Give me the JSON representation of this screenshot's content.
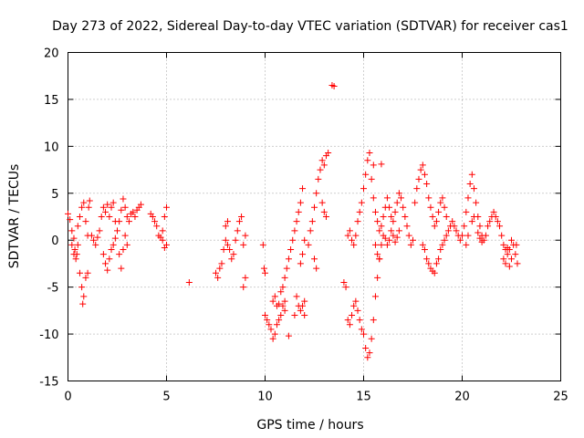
{
  "chart_data": {
    "type": "scatter",
    "title": "Day 273 of 2022, Sidereal Day-to-day VTEC variation (SDTVAR) for receiver cas1",
    "xlabel": "GPS time / hours",
    "ylabel": "SDTVAR / TECUs",
    "xlim": [
      0,
      25
    ],
    "ylim": [
      -15,
      20
    ],
    "xticks": [
      0,
      5,
      10,
      15,
      20,
      25
    ],
    "yticks": [
      -15,
      -10,
      -5,
      0,
      5,
      10,
      15,
      20
    ],
    "x_tick_labels": [
      "0",
      "5",
      "10",
      "15",
      "20",
      "25"
    ],
    "y_tick_labels": [
      "-15",
      "-10",
      "-5",
      "0",
      "5",
      "10",
      "15",
      "20"
    ],
    "grid": true,
    "marker": "+",
    "color": "#ff0000",
    "series": [
      {
        "name": "cas1",
        "points": [
          [
            0.0,
            2.8
          ],
          [
            0.1,
            2.2
          ],
          [
            0.2,
            1.0
          ],
          [
            0.3,
            0.2
          ],
          [
            0.35,
            -1.0
          ],
          [
            0.4,
            -2.0
          ],
          [
            0.45,
            -1.5
          ],
          [
            0.5,
            1.5
          ],
          [
            0.6,
            2.5
          ],
          [
            0.7,
            3.5
          ],
          [
            0.8,
            4.0
          ],
          [
            0.9,
            2.0
          ],
          [
            1.0,
            0.5
          ],
          [
            1.05,
            3.5
          ],
          [
            1.1,
            4.2
          ],
          [
            0.5,
            -0.5
          ],
          [
            0.6,
            -3.5
          ],
          [
            0.7,
            -5.0
          ],
          [
            0.75,
            -6.8
          ],
          [
            0.8,
            -6.0
          ],
          [
            0.9,
            -4.0
          ],
          [
            1.0,
            -3.5
          ],
          [
            0.2,
            -0.5
          ],
          [
            0.3,
            -1.5
          ],
          [
            1.2,
            0.5
          ],
          [
            1.3,
            0.0
          ],
          [
            1.4,
            -0.5
          ],
          [
            1.5,
            0.3
          ],
          [
            1.6,
            1.0
          ],
          [
            1.7,
            2.5
          ],
          [
            1.8,
            3.5
          ],
          [
            1.9,
            3.0
          ],
          [
            2.0,
            3.8
          ],
          [
            2.1,
            2.5
          ],
          [
            2.2,
            3.5
          ],
          [
            2.3,
            4.0
          ],
          [
            2.4,
            2.0
          ],
          [
            2.5,
            1.0
          ],
          [
            1.8,
            -1.5
          ],
          [
            1.9,
            -2.5
          ],
          [
            2.0,
            -3.2
          ],
          [
            2.1,
            -2.0
          ],
          [
            2.2,
            -1.0
          ],
          [
            2.3,
            -0.5
          ],
          [
            2.4,
            0.2
          ],
          [
            2.6,
            -1.5
          ],
          [
            2.7,
            -3.0
          ],
          [
            2.8,
            -1.0
          ],
          [
            2.9,
            0.5
          ],
          [
            3.0,
            -0.5
          ],
          [
            2.6,
            2.0
          ],
          [
            2.7,
            3.2
          ],
          [
            2.8,
            4.4
          ],
          [
            2.9,
            3.5
          ],
          [
            3.0,
            2.5
          ],
          [
            3.1,
            2.0
          ],
          [
            3.2,
            2.8
          ],
          [
            3.3,
            3.0
          ],
          [
            3.4,
            2.5
          ],
          [
            3.5,
            3.2
          ],
          [
            3.6,
            3.5
          ],
          [
            3.7,
            3.8
          ],
          [
            4.2,
            2.8
          ],
          [
            4.3,
            2.5
          ],
          [
            4.4,
            2.0
          ],
          [
            4.5,
            1.5
          ],
          [
            4.6,
            0.5
          ],
          [
            4.7,
            0.3
          ],
          [
            4.8,
            1.0
          ],
          [
            4.9,
            2.5
          ],
          [
            5.0,
            3.5
          ],
          [
            5.0,
            -0.5
          ],
          [
            4.9,
            -0.8
          ],
          [
            4.8,
            0.0
          ],
          [
            6.15,
            -4.5
          ],
          [
            7.5,
            -3.5
          ],
          [
            7.6,
            -4.0
          ],
          [
            7.7,
            -3.0
          ],
          [
            7.8,
            -2.5
          ],
          [
            7.9,
            -1.0
          ],
          [
            8.0,
            0.0
          ],
          [
            8.1,
            -0.5
          ],
          [
            8.2,
            -1.0
          ],
          [
            8.3,
            -2.0
          ],
          [
            8.4,
            -1.5
          ],
          [
            8.5,
            0.0
          ],
          [
            8.6,
            1.0
          ],
          [
            8.7,
            2.0
          ],
          [
            8.8,
            2.5
          ],
          [
            8.9,
            -0.5
          ],
          [
            9.0,
            0.5
          ],
          [
            9.0,
            -4.0
          ],
          [
            8.9,
            -5.0
          ],
          [
            8.0,
            1.5
          ],
          [
            8.1,
            2.0
          ],
          [
            9.9,
            -0.5
          ],
          [
            9.95,
            -3.0
          ],
          [
            10.0,
            -3.5
          ],
          [
            10.0,
            -8.0
          ],
          [
            10.1,
            -8.5
          ],
          [
            10.2,
            -9.0
          ],
          [
            10.3,
            -9.5
          ],
          [
            10.4,
            -10.5
          ],
          [
            10.5,
            -10.0
          ],
          [
            10.6,
            -9.0
          ],
          [
            10.7,
            -8.5
          ],
          [
            10.8,
            -8.0
          ],
          [
            10.9,
            -7.0
          ],
          [
            11.0,
            -6.5
          ],
          [
            10.4,
            -6.5
          ],
          [
            10.5,
            -6.0
          ],
          [
            10.6,
            -7.0
          ],
          [
            10.7,
            -6.8
          ],
          [
            10.8,
            -5.5
          ],
          [
            10.9,
            -5.0
          ],
          [
            11.0,
            -4.0
          ],
          [
            11.1,
            -3.0
          ],
          [
            11.2,
            -2.0
          ],
          [
            11.3,
            -1.0
          ],
          [
            11.4,
            0.0
          ],
          [
            11.5,
            1.0
          ],
          [
            11.6,
            2.0
          ],
          [
            11.7,
            3.0
          ],
          [
            11.8,
            4.0
          ],
          [
            11.9,
            5.5
          ],
          [
            11.0,
            -7.5
          ],
          [
            11.2,
            -10.2
          ],
          [
            11.5,
            -8.0
          ],
          [
            11.6,
            -6.0
          ],
          [
            11.7,
            -7.0
          ],
          [
            11.8,
            -7.5
          ],
          [
            11.9,
            -7.0
          ],
          [
            12.0,
            -6.5
          ],
          [
            12.0,
            -8.0
          ],
          [
            11.8,
            -2.5
          ],
          [
            11.9,
            -1.5
          ],
          [
            12.0,
            0.0
          ],
          [
            12.2,
            -0.5
          ],
          [
            12.3,
            1.0
          ],
          [
            12.4,
            2.0
          ],
          [
            12.5,
            3.5
          ],
          [
            12.6,
            5.0
          ],
          [
            12.7,
            6.5
          ],
          [
            12.8,
            7.5
          ],
          [
            12.9,
            8.5
          ],
          [
            13.0,
            8.0
          ],
          [
            13.1,
            9.0
          ],
          [
            13.2,
            9.3
          ],
          [
            12.9,
            4.0
          ],
          [
            13.0,
            3.0
          ],
          [
            13.1,
            2.5
          ],
          [
            12.5,
            -2.0
          ],
          [
            12.6,
            -3.0
          ],
          [
            13.4,
            16.5
          ],
          [
            13.5,
            16.4
          ],
          [
            14.0,
            -4.5
          ],
          [
            14.1,
            -5.0
          ],
          [
            14.2,
            -8.5
          ],
          [
            14.3,
            -9.0
          ],
          [
            14.4,
            -8.0
          ],
          [
            14.5,
            -7.0
          ],
          [
            14.6,
            -6.5
          ],
          [
            14.7,
            -7.5
          ],
          [
            14.8,
            -8.5
          ],
          [
            14.9,
            -9.5
          ],
          [
            15.0,
            -10.0
          ],
          [
            15.1,
            -11.5
          ],
          [
            15.2,
            -12.5
          ],
          [
            15.3,
            -12.0
          ],
          [
            15.4,
            -10.5
          ],
          [
            15.5,
            -8.5
          ],
          [
            15.6,
            -6.0
          ],
          [
            15.7,
            -4.0
          ],
          [
            15.8,
            -2.0
          ],
          [
            14.2,
            0.5
          ],
          [
            14.3,
            1.0
          ],
          [
            14.4,
            0.0
          ],
          [
            14.5,
            -0.5
          ],
          [
            14.6,
            0.5
          ],
          [
            14.7,
            2.0
          ],
          [
            14.8,
            3.0
          ],
          [
            14.9,
            4.0
          ],
          [
            15.0,
            5.5
          ],
          [
            15.1,
            7.0
          ],
          [
            15.2,
            8.5
          ],
          [
            15.3,
            9.3
          ],
          [
            15.4,
            6.5
          ],
          [
            15.5,
            4.5
          ],
          [
            15.6,
            3.0
          ],
          [
            15.7,
            2.0
          ],
          [
            15.8,
            1.0
          ],
          [
            15.9,
            1.5
          ],
          [
            16.0,
            2.5
          ],
          [
            16.1,
            3.5
          ],
          [
            16.2,
            4.5
          ],
          [
            16.3,
            3.5
          ],
          [
            16.4,
            2.5
          ],
          [
            16.5,
            2.0
          ],
          [
            16.6,
            3.0
          ],
          [
            16.7,
            4.0
          ],
          [
            16.8,
            5.0
          ],
          [
            16.9,
            4.5
          ],
          [
            17.0,
            3.5
          ],
          [
            17.1,
            2.5
          ],
          [
            17.2,
            1.5
          ],
          [
            17.3,
            0.5
          ],
          [
            17.4,
            -0.5
          ],
          [
            17.5,
            0.0
          ],
          [
            15.6,
            -0.5
          ],
          [
            15.7,
            -1.5
          ],
          [
            15.8,
            -2.0
          ],
          [
            15.9,
            -0.5
          ],
          [
            16.0,
            0.5
          ],
          [
            16.1,
            0.2
          ],
          [
            16.2,
            -0.5
          ],
          [
            16.3,
            0.0
          ],
          [
            16.4,
            1.0
          ],
          [
            16.5,
            0.5
          ],
          [
            16.6,
            -0.2
          ],
          [
            16.7,
            0.3
          ],
          [
            16.8,
            1.0
          ],
          [
            15.5,
            8.0
          ],
          [
            15.9,
            8.1
          ],
          [
            17.6,
            4.0
          ],
          [
            17.7,
            5.5
          ],
          [
            17.8,
            6.5
          ],
          [
            17.9,
            7.5
          ],
          [
            18.0,
            8.0
          ],
          [
            18.1,
            7.0
          ],
          [
            18.2,
            6.0
          ],
          [
            18.3,
            4.5
          ],
          [
            18.4,
            3.5
          ],
          [
            18.5,
            2.5
          ],
          [
            18.6,
            1.5
          ],
          [
            18.7,
            2.0
          ],
          [
            18.8,
            3.0
          ],
          [
            18.9,
            4.0
          ],
          [
            19.0,
            4.5
          ],
          [
            19.1,
            3.5
          ],
          [
            19.2,
            2.5
          ],
          [
            18.0,
            -0.5
          ],
          [
            18.1,
            -1.0
          ],
          [
            18.2,
            -2.0
          ],
          [
            18.3,
            -2.5
          ],
          [
            18.4,
            -3.0
          ],
          [
            18.5,
            -3.3
          ],
          [
            18.6,
            -3.5
          ],
          [
            18.7,
            -2.5
          ],
          [
            18.8,
            -2.0
          ],
          [
            18.9,
            -1.0
          ],
          [
            19.0,
            -0.5
          ],
          [
            19.1,
            0.0
          ],
          [
            19.2,
            0.5
          ],
          [
            19.3,
            1.0
          ],
          [
            19.4,
            1.5
          ],
          [
            19.5,
            2.0
          ],
          [
            19.6,
            1.5
          ],
          [
            19.7,
            1.0
          ],
          [
            19.8,
            0.5
          ],
          [
            19.9,
            0.0
          ],
          [
            20.0,
            0.5
          ],
          [
            20.1,
            1.5
          ],
          [
            20.2,
            3.0
          ],
          [
            20.3,
            4.5
          ],
          [
            20.4,
            6.0
          ],
          [
            20.5,
            7.0
          ],
          [
            20.6,
            5.5
          ],
          [
            20.7,
            4.0
          ],
          [
            20.8,
            2.5
          ],
          [
            20.9,
            1.5
          ],
          [
            21.0,
            0.5
          ],
          [
            21.1,
            0.0
          ],
          [
            21.2,
            0.5
          ],
          [
            21.3,
            1.5
          ],
          [
            20.2,
            -0.5
          ],
          [
            20.3,
            0.5
          ],
          [
            20.5,
            2.0
          ],
          [
            20.6,
            2.5
          ],
          [
            20.8,
            0.8
          ],
          [
            20.9,
            0.2
          ],
          [
            21.0,
            -0.2
          ],
          [
            21.4,
            2.0
          ],
          [
            21.5,
            2.5
          ],
          [
            21.6,
            3.0
          ],
          [
            21.7,
            2.5
          ],
          [
            21.8,
            2.0
          ],
          [
            21.9,
            1.5
          ],
          [
            22.0,
            0.5
          ],
          [
            22.1,
            -0.5
          ],
          [
            22.2,
            -1.0
          ],
          [
            22.1,
            -2.0
          ],
          [
            22.2,
            -2.5
          ],
          [
            22.3,
            -1.5
          ],
          [
            22.4,
            -1.0
          ],
          [
            22.5,
            0.0
          ],
          [
            22.6,
            -0.5
          ],
          [
            22.7,
            -1.5
          ],
          [
            22.8,
            -2.5
          ],
          [
            22.75,
            -0.5
          ],
          [
            22.4,
            -2.8
          ],
          [
            22.5,
            -2.0
          ],
          [
            22.3,
            -0.8
          ]
        ]
      }
    ]
  }
}
